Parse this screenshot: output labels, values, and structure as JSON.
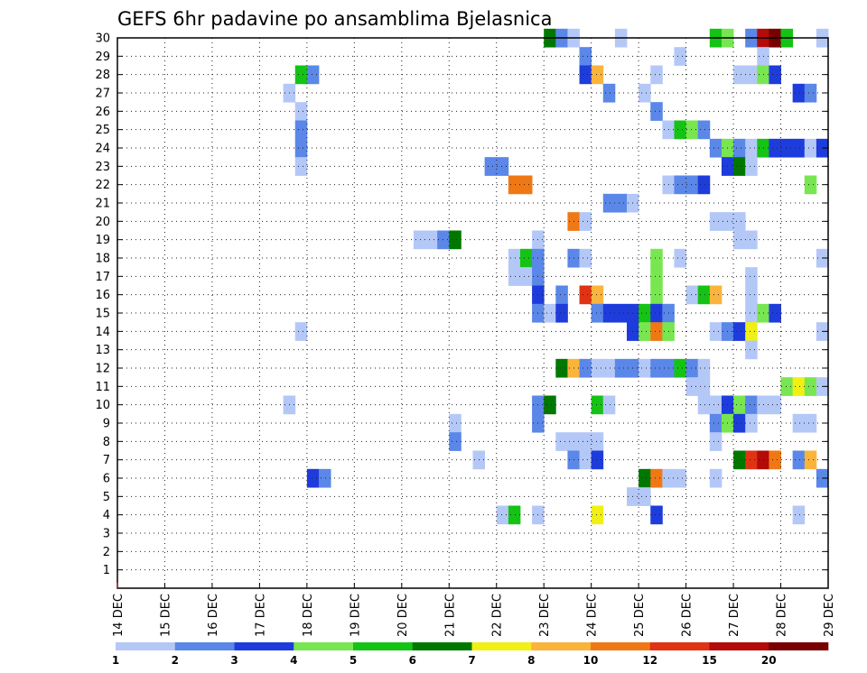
{
  "chart_data": {
    "type": "heatmap",
    "title": "GEFS 6hr padavine po ansamblima Bjelasnica",
    "x_tick_labels": [
      "14 DEC",
      "15 DEC",
      "16 DEC",
      "17 DEC",
      "18 DEC",
      "19 DEC",
      "20 DEC",
      "21 DEC",
      "22 DEC",
      "23 DEC",
      "24 DEC",
      "25 DEC",
      "26 DEC",
      "27 DEC",
      "28 DEC",
      "29 DEC"
    ],
    "y_tick_labels": [
      "1",
      "2",
      "3",
      "4",
      "5",
      "6",
      "7",
      "8",
      "9",
      "10",
      "11",
      "12",
      "13",
      "14",
      "15",
      "16",
      "17",
      "18",
      "19",
      "20",
      "21",
      "22",
      "23",
      "24",
      "25",
      "26",
      "27",
      "28",
      "29",
      "30"
    ],
    "y_range": [
      0,
      30
    ],
    "time_steps": 60,
    "grid": true,
    "legend_position": "bottom",
    "legend_labels": [
      "1",
      "2",
      "3",
      "4",
      "5",
      "6",
      "7",
      "8",
      "10",
      "12",
      "15",
      "20"
    ],
    "legend_colors": [
      "#b4c8f8",
      "#5a87e8",
      "#1e3cdc",
      "#78e650",
      "#14c314",
      "#007800",
      "#f0f014",
      "#fab43c",
      "#f07814",
      "#e13214",
      "#b40a0a",
      "#780000"
    ],
    "colors": {
      "1": "#b4c8f8",
      "2": "#5a87e8",
      "3": "#1e3cdc",
      "4": "#78e650",
      "5": "#14c314",
      "6": "#007800",
      "7": "#f0f014",
      "8": "#fab43c",
      "10": "#f07814",
      "12": "#e13214",
      "15": "#b40a0a",
      "20": "#780000"
    },
    "members": [
      {
        "member": 30,
        "values": [
          [
            36,
            "6"
          ],
          [
            37,
            "2"
          ],
          [
            38,
            "1"
          ],
          [
            42,
            "1"
          ],
          [
            50,
            "5"
          ],
          [
            51,
            "4"
          ],
          [
            53,
            "2"
          ],
          [
            54,
            "15"
          ],
          [
            55,
            "20"
          ],
          [
            56,
            "5"
          ],
          [
            59,
            "1"
          ]
        ]
      },
      {
        "member": 29,
        "values": [
          [
            39,
            "2"
          ],
          [
            47,
            "1"
          ],
          [
            54,
            "1"
          ]
        ]
      },
      {
        "member": 28,
        "values": [
          [
            15,
            "5"
          ],
          [
            16,
            "2"
          ],
          [
            39,
            "3"
          ],
          [
            40,
            "8"
          ],
          [
            45,
            "1"
          ],
          [
            52,
            "1"
          ],
          [
            53,
            "1"
          ],
          [
            54,
            "4"
          ],
          [
            55,
            "3"
          ]
        ]
      },
      {
        "member": 27,
        "values": [
          [
            14,
            "1"
          ],
          [
            41,
            "2"
          ],
          [
            44,
            "1"
          ],
          [
            57,
            "3"
          ],
          [
            58,
            "2"
          ]
        ]
      },
      {
        "member": 26,
        "values": [
          [
            15,
            "1"
          ],
          [
            45,
            "2"
          ]
        ]
      },
      {
        "member": 25,
        "values": [
          [
            15,
            "2"
          ],
          [
            46,
            "1"
          ],
          [
            47,
            "5"
          ],
          [
            48,
            "4"
          ],
          [
            49,
            "2"
          ]
        ]
      },
      {
        "member": 24,
        "values": [
          [
            15,
            "2"
          ],
          [
            50,
            "2"
          ],
          [
            51,
            "4"
          ],
          [
            52,
            "2"
          ],
          [
            53,
            "1"
          ],
          [
            54,
            "5"
          ],
          [
            55,
            "3"
          ],
          [
            56,
            "3"
          ],
          [
            57,
            "3"
          ],
          [
            58,
            "1"
          ],
          [
            59,
            "3"
          ]
        ]
      },
      {
        "member": 23,
        "values": [
          [
            15,
            "1"
          ],
          [
            31,
            "2"
          ],
          [
            32,
            "2"
          ],
          [
            51,
            "3"
          ],
          [
            52,
            "6"
          ],
          [
            53,
            "1"
          ]
        ]
      },
      {
        "member": 22,
        "values": [
          [
            33,
            "10"
          ],
          [
            34,
            "10"
          ],
          [
            46,
            "1"
          ],
          [
            47,
            "2"
          ],
          [
            48,
            "2"
          ],
          [
            49,
            "3"
          ],
          [
            58,
            "4"
          ]
        ]
      },
      {
        "member": 21,
        "values": [
          [
            41,
            "2"
          ],
          [
            42,
            "2"
          ],
          [
            43,
            "1"
          ]
        ]
      },
      {
        "member": 20,
        "values": [
          [
            38,
            "10"
          ],
          [
            39,
            "1"
          ],
          [
            50,
            "1"
          ],
          [
            51,
            "1"
          ],
          [
            52,
            "1"
          ]
        ]
      },
      {
        "member": 19,
        "values": [
          [
            25,
            "1"
          ],
          [
            26,
            "1"
          ],
          [
            27,
            "2"
          ],
          [
            28,
            "6"
          ],
          [
            35,
            "1"
          ],
          [
            52,
            "1"
          ],
          [
            53,
            "1"
          ]
        ]
      },
      {
        "member": 18,
        "values": [
          [
            33,
            "1"
          ],
          [
            34,
            "5"
          ],
          [
            35,
            "2"
          ],
          [
            38,
            "2"
          ],
          [
            39,
            "1"
          ],
          [
            45,
            "4"
          ],
          [
            47,
            "1"
          ],
          [
            59,
            "1"
          ]
        ]
      },
      {
        "member": 17,
        "values": [
          [
            33,
            "1"
          ],
          [
            34,
            "1"
          ],
          [
            35,
            "2"
          ],
          [
            45,
            "4"
          ],
          [
            53,
            "1"
          ]
        ]
      },
      {
        "member": 16,
        "values": [
          [
            35,
            "3"
          ],
          [
            37,
            "2"
          ],
          [
            39,
            "12"
          ],
          [
            40,
            "8"
          ],
          [
            45,
            "4"
          ],
          [
            48,
            "1"
          ],
          [
            49,
            "5"
          ],
          [
            50,
            "8"
          ],
          [
            53,
            "1"
          ]
        ]
      },
      {
        "member": 15,
        "values": [
          [
            35,
            "2"
          ],
          [
            36,
            "1"
          ],
          [
            37,
            "3"
          ],
          [
            40,
            "2"
          ],
          [
            41,
            "3"
          ],
          [
            42,
            "3"
          ],
          [
            43,
            "3"
          ],
          [
            44,
            "5"
          ],
          [
            45,
            "3"
          ],
          [
            46,
            "2"
          ],
          [
            53,
            "1"
          ],
          [
            54,
            "4"
          ],
          [
            55,
            "3"
          ]
        ]
      },
      {
        "member": 14,
        "values": [
          [
            15,
            "1"
          ],
          [
            43,
            "3"
          ],
          [
            44,
            "4"
          ],
          [
            45,
            "10"
          ],
          [
            46,
            "4"
          ],
          [
            50,
            "1"
          ],
          [
            51,
            "2"
          ],
          [
            52,
            "3"
          ],
          [
            53,
            "7"
          ],
          [
            59,
            "1"
          ]
        ]
      },
      {
        "member": 13,
        "values": [
          [
            53,
            "1"
          ]
        ]
      },
      {
        "member": 12,
        "values": [
          [
            37,
            "6"
          ],
          [
            38,
            "8"
          ],
          [
            39,
            "2"
          ],
          [
            40,
            "1"
          ],
          [
            41,
            "1"
          ],
          [
            42,
            "2"
          ],
          [
            43,
            "2"
          ],
          [
            44,
            "1"
          ],
          [
            45,
            "2"
          ],
          [
            46,
            "2"
          ],
          [
            47,
            "5"
          ],
          [
            48,
            "2"
          ],
          [
            49,
            "1"
          ]
        ]
      },
      {
        "member": 11,
        "values": [
          [
            48,
            "1"
          ],
          [
            49,
            "1"
          ],
          [
            56,
            "4"
          ],
          [
            57,
            "7"
          ],
          [
            58,
            "4"
          ],
          [
            59,
            "1"
          ]
        ]
      },
      {
        "member": 10,
        "values": [
          [
            14,
            "1"
          ],
          [
            35,
            "2"
          ],
          [
            36,
            "6"
          ],
          [
            40,
            "5"
          ],
          [
            41,
            "1"
          ],
          [
            49,
            "1"
          ],
          [
            50,
            "1"
          ],
          [
            51,
            "3"
          ],
          [
            52,
            "4"
          ],
          [
            53,
            "2"
          ],
          [
            54,
            "1"
          ],
          [
            55,
            "1"
          ]
        ]
      },
      {
        "member": 9,
        "values": [
          [
            28,
            "1"
          ],
          [
            35,
            "2"
          ],
          [
            50,
            "2"
          ],
          [
            51,
            "4"
          ],
          [
            52,
            "3"
          ],
          [
            53,
            "1"
          ],
          [
            57,
            "1"
          ],
          [
            58,
            "1"
          ]
        ]
      },
      {
        "member": 8,
        "values": [
          [
            28,
            "2"
          ],
          [
            37,
            "1"
          ],
          [
            38,
            "1"
          ],
          [
            39,
            "1"
          ],
          [
            40,
            "1"
          ],
          [
            50,
            "1"
          ]
        ]
      },
      {
        "member": 7,
        "values": [
          [
            30,
            "1"
          ],
          [
            38,
            "2"
          ],
          [
            39,
            "1"
          ],
          [
            40,
            "3"
          ],
          [
            52,
            "6"
          ],
          [
            53,
            "12"
          ],
          [
            54,
            "15"
          ],
          [
            55,
            "10"
          ],
          [
            57,
            "2"
          ],
          [
            58,
            "8"
          ]
        ]
      },
      {
        "member": 6,
        "values": [
          [
            16,
            "3"
          ],
          [
            17,
            "2"
          ],
          [
            44,
            "6"
          ],
          [
            45,
            "10"
          ],
          [
            46,
            "1"
          ],
          [
            47,
            "1"
          ],
          [
            50,
            "1"
          ],
          [
            59,
            "2"
          ]
        ]
      },
      {
        "member": 5,
        "values": [
          [
            43,
            "1"
          ],
          [
            44,
            "1"
          ]
        ]
      },
      {
        "member": 4,
        "values": [
          [
            32,
            "1"
          ],
          [
            33,
            "5"
          ],
          [
            35,
            "1"
          ],
          [
            40,
            "7"
          ],
          [
            45,
            "3"
          ],
          [
            57,
            "1"
          ]
        ]
      }
    ]
  }
}
